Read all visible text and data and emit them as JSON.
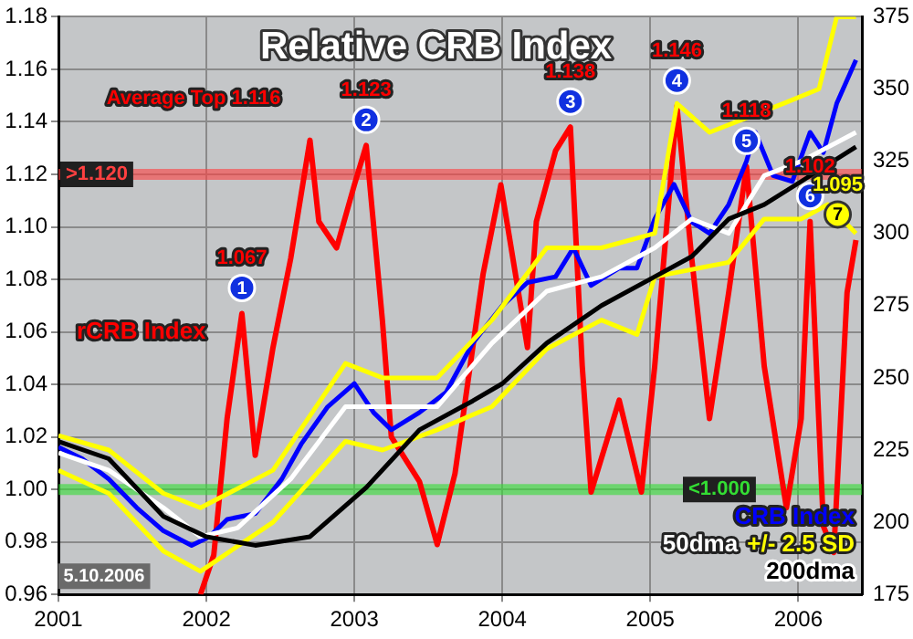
{
  "chart_data": {
    "type": "line",
    "title": "Relative CRB Index",
    "xlim": [
      2001,
      2006.43
    ],
    "xticks": [
      2001,
      2002,
      2003,
      2004,
      2005,
      2006
    ],
    "ylim": [
      0.96,
      1.18
    ],
    "yticks": [
      {
        "value": 0.96,
        "label": "0.96"
      },
      {
        "value": 0.98,
        "label": "0.98"
      },
      {
        "value": 1.0,
        "label": "1.00"
      },
      {
        "value": 1.02,
        "label": "1.02"
      },
      {
        "value": 1.04,
        "label": "1.04"
      },
      {
        "value": 1.06,
        "label": "1.06"
      },
      {
        "value": 1.08,
        "label": "1.08"
      },
      {
        "value": 1.1,
        "label": "1.10"
      },
      {
        "value": 1.12,
        "label": "1.12"
      },
      {
        "value": 1.14,
        "label": "1.14"
      },
      {
        "value": 1.16,
        "label": "1.16"
      },
      {
        "value": 1.18,
        "label": "1.18"
      }
    ],
    "y2lim": [
      175,
      375
    ],
    "y2ticks": [
      175,
      200,
      225,
      250,
      275,
      300,
      325,
      350,
      375
    ],
    "grid": true,
    "legend": "bottom right",
    "marker": "none",
    "line_style": "solid",
    "series": [
      {
        "name": "rCRB Index",
        "color": "#ff0000",
        "axis": "y",
        "x": [
          2001.96,
          2002.05,
          2002.14,
          2002.24,
          2002.33,
          2002.45,
          2002.57,
          2002.7,
          2002.76,
          2002.88,
          2003.0,
          2003.08,
          2003.19,
          2003.25,
          2003.44,
          2003.56,
          2003.68,
          2003.87,
          2003.99,
          2004.17,
          2004.23,
          2004.36,
          2004.46,
          2004.54,
          2004.6,
          2004.79,
          2004.94,
          2005.03,
          2005.18,
          2005.28,
          2005.4,
          2005.53,
          2005.65,
          2005.77,
          2005.92,
          2006.02,
          2006.08,
          2006.17,
          2006.24,
          2006.33,
          2006.39
        ],
        "values": [
          0.96,
          0.975,
          1.027,
          1.067,
          1.013,
          1.054,
          1.088,
          1.133,
          1.102,
          1.092,
          1.116,
          1.131,
          1.064,
          1.02,
          1.003,
          0.979,
          1.006,
          1.082,
          1.116,
          1.054,
          1.102,
          1.129,
          1.138,
          1.047,
          0.999,
          1.034,
          0.999,
          1.047,
          1.146,
          1.088,
          1.027,
          1.075,
          1.123,
          1.047,
          0.993,
          1.027,
          1.102,
          0.986,
          0.976,
          1.075,
          1.095
        ]
      },
      {
        "color": "#ffff00",
        "axis": "y2",
        "x": [
          2001.0,
          2001.34,
          2001.71,
          2001.96,
          2002.45,
          2002.94,
          2003.19,
          2003.56,
          2003.93,
          2004.3,
          2004.67,
          2004.91,
          2005.03,
          2005.53,
          2005.77,
          2006.02,
          2006.2,
          2006.39
        ],
        "values": [
          218,
          210,
          190,
          183,
          200,
          228,
          225,
          232,
          240,
          260,
          270,
          265,
          285,
          290,
          305,
          305,
          310,
          300
        ]
      },
      {
        "name": "CRB Index",
        "color": "#0000ff",
        "axis": "y2",
        "x": [
          2001.0,
          2001.16,
          2001.34,
          2001.53,
          2001.71,
          2001.9,
          2002.02,
          2002.14,
          2002.33,
          2002.51,
          2002.64,
          2002.82,
          2003.0,
          2003.13,
          2003.25,
          2003.44,
          2003.62,
          2003.8,
          2004.0,
          2004.17,
          2004.36,
          2004.48,
          2004.6,
          2004.79,
          2004.91,
          2005.03,
          2005.16,
          2005.28,
          2005.4,
          2005.53,
          2005.65,
          2005.71,
          2005.83,
          2005.96,
          2006.08,
          2006.17,
          2006.26,
          2006.39
        ],
        "values": [
          226,
          222,
          215,
          205,
          197,
          192,
          195,
          201,
          203,
          215,
          227,
          240,
          248,
          238,
          232,
          238,
          245,
          262,
          275,
          283,
          285,
          295,
          282,
          288,
          288,
          305,
          317,
          304,
          300,
          310,
          325,
          335,
          320,
          318,
          335,
          328,
          345,
          360
        ]
      },
      {
        "name": "50dma",
        "color": "#ffffff",
        "axis": "y2",
        "x": [
          2001.0,
          2001.34,
          2001.71,
          2001.96,
          2002.21,
          2002.57,
          2002.94,
          2003.19,
          2003.56,
          2003.93,
          2004.3,
          2004.67,
          2005.03,
          2005.28,
          2005.53,
          2005.77,
          2006.02,
          2006.39
        ],
        "values": [
          224,
          218,
          205,
          195,
          198,
          215,
          240,
          240,
          240,
          262,
          280,
          285,
          295,
          305,
          300,
          320,
          325,
          335
        ]
      },
      {
        "name": "+/- 2.5 SD",
        "color": "#ffff00",
        "axis": "y2",
        "x": [
          2001.0,
          2001.34,
          2001.71,
          2001.96,
          2002.45,
          2002.94,
          2003.19,
          2003.56,
          2003.93,
          2004.3,
          2004.67,
          2005.03,
          2005.18,
          2005.4,
          2005.65,
          2005.9,
          2006.14,
          2006.26,
          2006.39
        ],
        "values": [
          230,
          225,
          210,
          205,
          218,
          255,
          250,
          250,
          270,
          295,
          295,
          300,
          345,
          335,
          340,
          345,
          350,
          375,
          375
        ]
      },
      {
        "name": "200dma",
        "color": "#000000",
        "axis": "y2",
        "x": [
          2001.0,
          2001.34,
          2001.71,
          2002.0,
          2002.33,
          2002.7,
          2003.08,
          2003.44,
          2003.8,
          2004.0,
          2004.3,
          2004.67,
          2005.03,
          2005.28,
          2005.53,
          2005.77,
          2006.02,
          2006.39
        ],
        "values": [
          228,
          222,
          202,
          195,
          192,
          195,
          212,
          232,
          242,
          248,
          262,
          275,
          285,
          292,
          305,
          310,
          318,
          330
        ]
      }
    ],
    "ref_lines": [
      {
        "axis": "y",
        "value": 1.12,
        "label": ">1.120",
        "color": "#ff4040"
      },
      {
        "axis": "y",
        "value": 1.0,
        "label": "<1.000",
        "color": "#33dd33"
      }
    ],
    "annotations": [
      "Average Top 1.116",
      "5.10.2006",
      {
        "text": "1",
        "x": 2002.24,
        "y": 1.067
      },
      {
        "text": "1.067",
        "x": 2002.24,
        "y": 1.067
      },
      {
        "text": "2",
        "x": 2003.08,
        "y": 1.131
      },
      {
        "text": "1.123",
        "x": 2003.08,
        "y": 1.131
      },
      {
        "text": "3",
        "x": 2004.46,
        "y": 1.138
      },
      {
        "text": "1.138",
        "x": 2004.46,
        "y": 1.138
      },
      {
        "text": "4",
        "x": 2005.18,
        "y": 1.146
      },
      {
        "text": "1.146",
        "x": 2005.18,
        "y": 1.146
      },
      {
        "text": "5",
        "x": 2005.65,
        "y": 1.123
      },
      {
        "text": "1.118",
        "x": 2005.65,
        "y": 1.123
      },
      {
        "text": "6",
        "x": 2006.08,
        "y": 1.102
      },
      {
        "text": "1.102",
        "x": 2006.08,
        "y": 1.102
      },
      {
        "text": "7",
        "x": 2006.39,
        "y": 1.095
      },
      {
        "text": "1.095",
        "x": 2006.39,
        "y": 1.095
      }
    ]
  }
}
